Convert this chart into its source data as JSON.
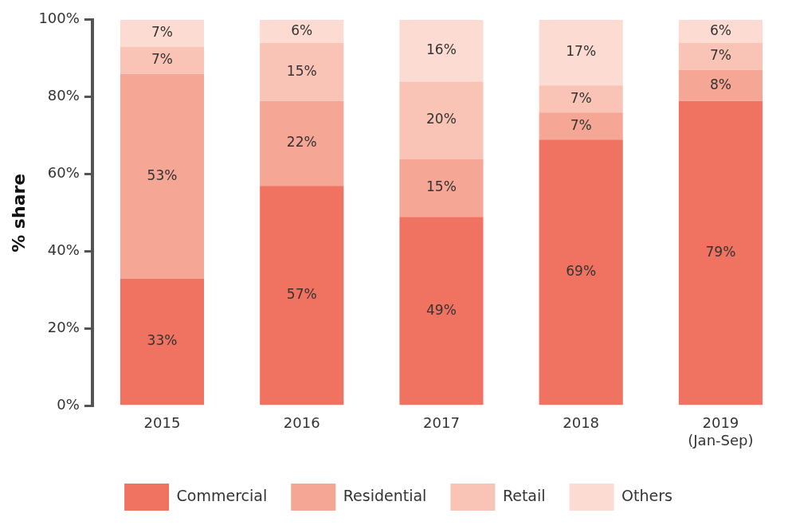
{
  "chart_data": {
    "type": "bar",
    "stacked": true,
    "ylabel": "% share",
    "categories": [
      "2015",
      "2016",
      "2017",
      "2018",
      "2019\n(Jan-Sep)"
    ],
    "series": [
      {
        "name": "Commercial",
        "color": "#f07361",
        "values": [
          33,
          57,
          49,
          69,
          79
        ],
        "value_labels": [
          "33%",
          "57%",
          "49%",
          "69%",
          "79%"
        ]
      },
      {
        "name": "Residential",
        "color": "#f5a694",
        "values": [
          53,
          22,
          15,
          7,
          8
        ],
        "value_labels": [
          "53%",
          "22%",
          "15%",
          "7%",
          "8%"
        ]
      },
      {
        "name": "Retail",
        "color": "#f9c4b5",
        "values": [
          7,
          15,
          20,
          7,
          7
        ],
        "value_labels": [
          "7%",
          "15%",
          "20%",
          "7%",
          "7%"
        ]
      },
      {
        "name": "Others",
        "color": "#fcdcd2",
        "values": [
          7,
          6,
          16,
          17,
          6
        ],
        "value_labels": [
          "7%",
          "6%",
          "16%",
          "17%",
          "6%"
        ]
      }
    ],
    "ylim": [
      0,
      100
    ],
    "yticks": [
      {
        "value": 0,
        "label": "0%"
      },
      {
        "value": 20,
        "label": "20%"
      },
      {
        "value": 40,
        "label": "40%"
      },
      {
        "value": 60,
        "label": "60%"
      },
      {
        "value": 80,
        "label": "80%"
      },
      {
        "value": 100,
        "label": "100%"
      }
    ],
    "grid": false,
    "legend": "bottom"
  }
}
